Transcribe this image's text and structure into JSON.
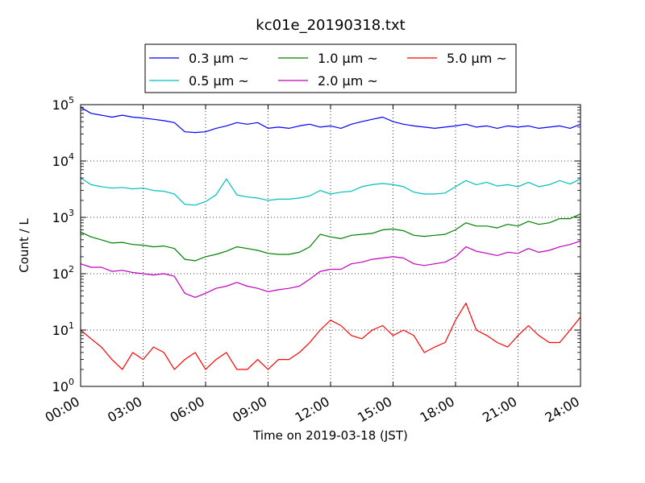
{
  "chart_data": {
    "type": "line",
    "title": "kc01e_20190318.txt",
    "xlabel": "Time on 2019-03-18 (JST)",
    "ylabel": "Count / L",
    "yscale": "log",
    "ylim": [
      1,
      100000
    ],
    "xlim": [
      "00:00",
      "24:00"
    ],
    "x_tick_labels": [
      "00:00",
      "03:00",
      "06:00",
      "09:00",
      "12:00",
      "15:00",
      "18:00",
      "21:00",
      "24:00"
    ],
    "y_tick_labels": [
      {
        "base": "10",
        "exp": "0"
      },
      {
        "base": "10",
        "exp": "1"
      },
      {
        "base": "10",
        "exp": "2"
      },
      {
        "base": "10",
        "exp": "3"
      },
      {
        "base": "10",
        "exp": "4"
      },
      {
        "base": "10",
        "exp": "5"
      }
    ],
    "grid": true,
    "legend_position": "above plot, centered",
    "series": [
      {
        "name": "0.3 μm ~",
        "color": "#0000ff",
        "points": [
          [
            0,
            90000
          ],
          [
            0.5,
            70000
          ],
          [
            1,
            65000
          ],
          [
            1.5,
            60000
          ],
          [
            2,
            65000
          ],
          [
            2.5,
            60000
          ],
          [
            3,
            58000
          ],
          [
            3.5,
            55000
          ],
          [
            4,
            52000
          ],
          [
            4.5,
            48000
          ],
          [
            5,
            33000
          ],
          [
            5.5,
            32000
          ],
          [
            6,
            33000
          ],
          [
            6.5,
            38000
          ],
          [
            7,
            42000
          ],
          [
            7.5,
            48000
          ],
          [
            8,
            45000
          ],
          [
            8.5,
            48000
          ],
          [
            9,
            38000
          ],
          [
            9.5,
            40000
          ],
          [
            10,
            38000
          ],
          [
            10.5,
            42000
          ],
          [
            11,
            45000
          ],
          [
            11.5,
            40000
          ],
          [
            12,
            42000
          ],
          [
            12.5,
            38000
          ],
          [
            13,
            45000
          ],
          [
            13.5,
            50000
          ],
          [
            14,
            55000
          ],
          [
            14.5,
            60000
          ],
          [
            15,
            50000
          ],
          [
            15.5,
            45000
          ],
          [
            16,
            42000
          ],
          [
            16.5,
            40000
          ],
          [
            17,
            38000
          ],
          [
            17.5,
            40000
          ],
          [
            18,
            42000
          ],
          [
            18.5,
            45000
          ],
          [
            19,
            40000
          ],
          [
            19.5,
            42000
          ],
          [
            20,
            38000
          ],
          [
            20.5,
            42000
          ],
          [
            21,
            40000
          ],
          [
            21.5,
            42000
          ],
          [
            22,
            38000
          ],
          [
            22.5,
            40000
          ],
          [
            23,
            42000
          ],
          [
            23.5,
            38000
          ],
          [
            24,
            45000
          ]
        ]
      },
      {
        "name": "0.5 μm ~",
        "color": "#00bfbf",
        "points": [
          [
            0,
            5000
          ],
          [
            0.5,
            3800
          ],
          [
            1,
            3500
          ],
          [
            1.5,
            3300
          ],
          [
            2,
            3400
          ],
          [
            2.5,
            3200
          ],
          [
            3,
            3300
          ],
          [
            3.5,
            3000
          ],
          [
            4,
            2900
          ],
          [
            4.5,
            2600
          ],
          [
            5,
            1700
          ],
          [
            5.5,
            1650
          ],
          [
            6,
            1900
          ],
          [
            6.5,
            2500
          ],
          [
            7,
            4800
          ],
          [
            7.5,
            2500
          ],
          [
            8,
            2300
          ],
          [
            8.5,
            2200
          ],
          [
            9,
            2000
          ],
          [
            9.5,
            2100
          ],
          [
            10,
            2100
          ],
          [
            10.5,
            2200
          ],
          [
            11,
            2400
          ],
          [
            11.5,
            3000
          ],
          [
            12,
            2600
          ],
          [
            12.5,
            2800
          ],
          [
            13,
            2900
          ],
          [
            13.5,
            3500
          ],
          [
            14,
            3800
          ],
          [
            14.5,
            4000
          ],
          [
            15,
            3800
          ],
          [
            15.5,
            3500
          ],
          [
            16,
            2800
          ],
          [
            16.5,
            2600
          ],
          [
            17,
            2600
          ],
          [
            17.5,
            2700
          ],
          [
            18,
            3500
          ],
          [
            18.5,
            4500
          ],
          [
            19,
            3800
          ],
          [
            19.5,
            4200
          ],
          [
            20,
            3600
          ],
          [
            20.5,
            3800
          ],
          [
            21,
            3500
          ],
          [
            21.5,
            4200
          ],
          [
            22,
            3500
          ],
          [
            22.5,
            3800
          ],
          [
            23,
            4500
          ],
          [
            23.5,
            3900
          ],
          [
            24,
            4800
          ]
        ]
      },
      {
        "name": "1.0 μm ~",
        "color": "#008000",
        "points": [
          [
            0,
            550
          ],
          [
            0.5,
            450
          ],
          [
            1,
            400
          ],
          [
            1.5,
            350
          ],
          [
            2,
            360
          ],
          [
            2.5,
            330
          ],
          [
            3,
            320
          ],
          [
            3.5,
            300
          ],
          [
            4,
            310
          ],
          [
            4.5,
            280
          ],
          [
            5,
            180
          ],
          [
            5.5,
            170
          ],
          [
            6,
            200
          ],
          [
            6.5,
            220
          ],
          [
            7,
            250
          ],
          [
            7.5,
            300
          ],
          [
            8,
            280
          ],
          [
            8.5,
            260
          ],
          [
            9,
            230
          ],
          [
            9.5,
            220
          ],
          [
            10,
            220
          ],
          [
            10.5,
            240
          ],
          [
            11,
            300
          ],
          [
            11.5,
            500
          ],
          [
            12,
            450
          ],
          [
            12.5,
            420
          ],
          [
            13,
            480
          ],
          [
            13.5,
            500
          ],
          [
            14,
            520
          ],
          [
            14.5,
            600
          ],
          [
            15,
            620
          ],
          [
            15.5,
            580
          ],
          [
            16,
            480
          ],
          [
            16.5,
            460
          ],
          [
            17,
            480
          ],
          [
            17.5,
            500
          ],
          [
            18,
            600
          ],
          [
            18.5,
            800
          ],
          [
            19,
            700
          ],
          [
            19.5,
            700
          ],
          [
            20,
            650
          ],
          [
            20.5,
            750
          ],
          [
            21,
            700
          ],
          [
            21.5,
            850
          ],
          [
            22,
            750
          ],
          [
            22.5,
            800
          ],
          [
            23,
            950
          ],
          [
            23.5,
            950
          ],
          [
            24,
            1150
          ]
        ]
      },
      {
        "name": "2.0 μm ~",
        "color": "#bf00bf",
        "points": [
          [
            0,
            150
          ],
          [
            0.5,
            130
          ],
          [
            1,
            130
          ],
          [
            1.5,
            110
          ],
          [
            2,
            115
          ],
          [
            2.5,
            105
          ],
          [
            3,
            100
          ],
          [
            3.5,
            95
          ],
          [
            4,
            100
          ],
          [
            4.5,
            90
          ],
          [
            5,
            45
          ],
          [
            5.5,
            38
          ],
          [
            6,
            45
          ],
          [
            6.5,
            55
          ],
          [
            7,
            60
          ],
          [
            7.5,
            70
          ],
          [
            8,
            60
          ],
          [
            8.5,
            55
          ],
          [
            9,
            48
          ],
          [
            9.5,
            52
          ],
          [
            10,
            55
          ],
          [
            10.5,
            60
          ],
          [
            11,
            80
          ],
          [
            11.5,
            110
          ],
          [
            12,
            120
          ],
          [
            12.5,
            120
          ],
          [
            13,
            150
          ],
          [
            13.5,
            160
          ],
          [
            14,
            180
          ],
          [
            14.5,
            190
          ],
          [
            15,
            200
          ],
          [
            15.5,
            190
          ],
          [
            16,
            150
          ],
          [
            16.5,
            140
          ],
          [
            17,
            150
          ],
          [
            17.5,
            160
          ],
          [
            18,
            200
          ],
          [
            18.5,
            300
          ],
          [
            19,
            250
          ],
          [
            19.5,
            230
          ],
          [
            20,
            210
          ],
          [
            20.5,
            240
          ],
          [
            21,
            230
          ],
          [
            21.5,
            280
          ],
          [
            22,
            240
          ],
          [
            22.5,
            260
          ],
          [
            23,
            300
          ],
          [
            23.5,
            330
          ],
          [
            24,
            380
          ]
        ]
      },
      {
        "name": "5.0 μm ~",
        "color": "#ff0000",
        "points": [
          [
            0,
            10
          ],
          [
            0.5,
            7
          ],
          [
            1,
            5
          ],
          [
            1.5,
            3
          ],
          [
            2,
            2
          ],
          [
            2.5,
            4
          ],
          [
            3,
            3
          ],
          [
            3.5,
            5
          ],
          [
            4,
            4
          ],
          [
            4.5,
            2
          ],
          [
            5,
            3
          ],
          [
            5.5,
            4
          ],
          [
            6,
            2
          ],
          [
            6.5,
            3
          ],
          [
            7,
            4
          ],
          [
            7.5,
            2
          ],
          [
            8,
            2
          ],
          [
            8.5,
            3
          ],
          [
            9,
            2
          ],
          [
            9.5,
            3
          ],
          [
            10,
            3
          ],
          [
            10.5,
            4
          ],
          [
            11,
            6
          ],
          [
            11.5,
            10
          ],
          [
            12,
            15
          ],
          [
            12.5,
            12
          ],
          [
            13,
            8
          ],
          [
            13.5,
            7
          ],
          [
            14,
            10
          ],
          [
            14.5,
            12
          ],
          [
            15,
            8
          ],
          [
            15.5,
            10
          ],
          [
            16,
            8
          ],
          [
            16.5,
            4
          ],
          [
            17,
            5
          ],
          [
            17.5,
            6
          ],
          [
            18,
            15
          ],
          [
            18.5,
            30
          ],
          [
            19,
            10
          ],
          [
            19.5,
            8
          ],
          [
            20,
            6
          ],
          [
            20.5,
            5
          ],
          [
            21,
            8
          ],
          [
            21.5,
            12
          ],
          [
            22,
            8
          ],
          [
            22.5,
            6
          ],
          [
            23,
            6
          ],
          [
            23.5,
            10
          ],
          [
            24,
            17
          ]
        ]
      }
    ]
  }
}
